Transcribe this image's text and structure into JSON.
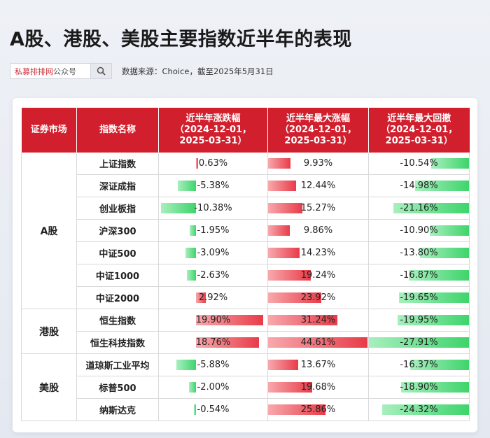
{
  "header": {
    "title": "A股、港股、美股主要指数近半年的表现",
    "search_brand": "私募排排网",
    "search_suffix": "公众号",
    "source": "数据来源：Choice，截至2025年5月31日"
  },
  "table": {
    "columns": [
      "证券市场",
      "指数名称",
      "近半年涨跌幅\n（2024-12-01，\n2025-03-31）",
      "近半年最大涨幅\n（2024-12-01，\n2025-03-31）",
      "近半年最大回撤\n（2024-12-01，\n2025-03-31）"
    ],
    "groups": [
      {
        "market": "A股",
        "rows": [
          {
            "name": "上证指数",
            "change": 0.63,
            "change_label": "0.63%",
            "max_gain": 9.93,
            "max_gain_label": "9.93%",
            "max_dd": -10.54,
            "max_dd_label": "-10.54%"
          },
          {
            "name": "深证成指",
            "change": -5.38,
            "change_label": "-5.38%",
            "max_gain": 12.44,
            "max_gain_label": "12.44%",
            "max_dd": -14.98,
            "max_dd_label": "-14.98%"
          },
          {
            "name": "创业板指",
            "change": -10.38,
            "change_label": "-10.38%",
            "max_gain": 15.27,
            "max_gain_label": "15.27%",
            "max_dd": -21.16,
            "max_dd_label": "-21.16%"
          },
          {
            "name": "沪深300",
            "change": -1.95,
            "change_label": "-1.95%",
            "max_gain": 9.86,
            "max_gain_label": "9.86%",
            "max_dd": -10.9,
            "max_dd_label": "-10.90%"
          },
          {
            "name": "中证500",
            "change": -3.09,
            "change_label": "-3.09%",
            "max_gain": 14.23,
            "max_gain_label": "14.23%",
            "max_dd": -13.8,
            "max_dd_label": "-13.80%"
          },
          {
            "name": "中证1000",
            "change": -2.63,
            "change_label": "-2.63%",
            "max_gain": 19.24,
            "max_gain_label": "19.24%",
            "max_dd": -16.87,
            "max_dd_label": "-16.87%"
          },
          {
            "name": "中证2000",
            "change": 2.92,
            "change_label": "2.92%",
            "max_gain": 23.92,
            "max_gain_label": "23.92%",
            "max_dd": -19.65,
            "max_dd_label": "-19.65%"
          }
        ]
      },
      {
        "market": "港股",
        "rows": [
          {
            "name": "恒生指数",
            "change": 19.9,
            "change_label": "19.90%",
            "max_gain": 31.24,
            "max_gain_label": "31.24%",
            "max_dd": -19.95,
            "max_dd_label": "-19.95%"
          },
          {
            "name": "恒生科技指数",
            "change": 18.76,
            "change_label": "18.76%",
            "max_gain": 44.61,
            "max_gain_label": "44.61%",
            "max_dd": -27.91,
            "max_dd_label": "-27.91%"
          }
        ]
      },
      {
        "market": "美股",
        "rows": [
          {
            "name": "道琼斯工业平均",
            "change": -5.88,
            "change_label": "-5.88%",
            "max_gain": 13.67,
            "max_gain_label": "13.67%",
            "max_dd": -16.37,
            "max_dd_label": "-16.37%"
          },
          {
            "name": "标普500",
            "change": -2.0,
            "change_label": "-2.00%",
            "max_gain": 19.68,
            "max_gain_label": "19.68%",
            "max_dd": -18.9,
            "max_dd_label": "-18.90%"
          },
          {
            "name": "纳斯达克",
            "change": -0.54,
            "change_label": "-0.54%",
            "max_gain": 25.86,
            "max_gain_label": "25.86%",
            "max_dd": -24.32,
            "max_dd_label": "-24.32%"
          }
        ]
      }
    ]
  },
  "colors": {
    "header_red": "#d21f2d",
    "bar_red": "#e83b48",
    "bar_green": "#3ed46b"
  }
}
